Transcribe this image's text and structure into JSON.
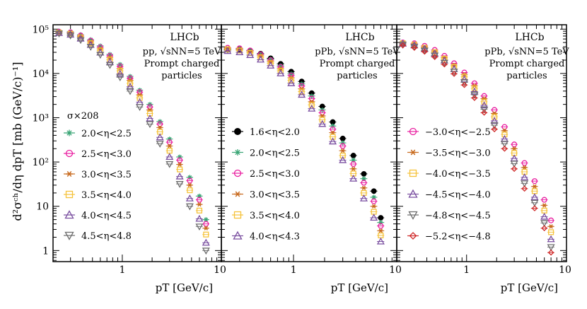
{
  "figure": {
    "ylabel": "d²σᶜʰ/dη dpT [mb (GeV/c)⁻¹]",
    "xlabel": "pT [GeV/c]",
    "y_tick_labels": [
      "1",
      "10",
      "10²",
      "10³",
      "10⁴",
      "10⁵"
    ],
    "x_tick_labels": [
      "1",
      "10"
    ]
  },
  "chart_data": [
    {
      "type": "scatter",
      "title": "LHCb",
      "subtitle_lines": [
        "pp, √sNN=5 TeV",
        "Prompt charged",
        "particles"
      ],
      "note": "σ×208",
      "xlabel": "pT [GeV/c]",
      "ylabel": "d²σch/dη dpT [mb (GeV/c)⁻¹]",
      "xscale": "log",
      "yscale": "log",
      "xlim": [
        0.2,
        10
      ],
      "ylim": [
        0.5,
        150000
      ],
      "x": [
        0.23,
        0.3,
        0.38,
        0.48,
        0.6,
        0.75,
        0.95,
        1.2,
        1.5,
        1.9,
        2.4,
        3.0,
        3.8,
        4.8,
        6.0,
        7.0
      ],
      "series": [
        {
          "name": "2.0<η<2.5",
          "color": "#3aa575",
          "marker": "asterisk",
          "values": [
            90000,
            88000,
            75000,
            58000,
            42000,
            27000,
            16000,
            8600,
            4200,
            2000,
            820,
            330,
            130,
            45,
            17,
            5.0
          ]
        },
        {
          "name": "2.5<η<3.0",
          "color": "#e91ea0",
          "marker": "circle",
          "values": [
            88000,
            85000,
            72000,
            55000,
            39000,
            25000,
            14500,
            7800,
            3800,
            1750,
            720,
            280,
            110,
            38,
            14,
            4.0
          ]
        },
        {
          "name": "3.0<η<3.5",
          "color": "#c86a1e",
          "marker": "star",
          "values": [
            86000,
            82000,
            69000,
            52000,
            36000,
            23000,
            13000,
            7000,
            3300,
            1500,
            600,
            230,
            88,
            30,
            11,
            3.2
          ]
        },
        {
          "name": "3.5<η<4.0",
          "color": "#f5c23a",
          "marker": "square",
          "values": [
            84000,
            79000,
            65000,
            48000,
            33000,
            20500,
            11500,
            6000,
            2800,
            1250,
            480,
            180,
            68,
            23,
            8.0,
            2.3
          ]
        },
        {
          "name": "4.0<η<4.5",
          "color": "#7a4fa0",
          "marker": "triangle-up",
          "values": [
            82000,
            75000,
            61000,
            44000,
            29500,
            18000,
            9800,
            5000,
            2250,
            960,
            360,
            130,
            47,
            15,
            5.2,
            1.5
          ]
        },
        {
          "name": "4.5<η<4.8",
          "color": "#6e6e6e",
          "marker": "triangle-down",
          "values": [
            80000,
            72000,
            57000,
            40000,
            26500,
            15500,
            8200,
            4000,
            1750,
            720,
            260,
            90,
            32,
            10,
            3.5,
            1.0
          ]
        }
      ]
    },
    {
      "type": "scatter",
      "title": "LHCb",
      "subtitle_lines": [
        "pPb, √sNN=5 TeV",
        "Prompt charged",
        "particles"
      ],
      "note": "",
      "xlabel": "pT [GeV/c]",
      "ylabel": "",
      "xscale": "log",
      "yscale": "log",
      "xlim": [
        0.2,
        10
      ],
      "ylim": [
        0.5,
        150000
      ],
      "x": [
        0.23,
        0.3,
        0.38,
        0.48,
        0.6,
        0.75,
        0.95,
        1.2,
        1.5,
        1.9,
        2.4,
        3.0,
        3.8,
        4.8,
        6.0,
        7.0
      ],
      "series": [
        {
          "name": "1.6<η<2.0",
          "color": "#000000",
          "marker": "filled-circle",
          "values": [
            34000,
            35000,
            33000,
            28000,
            22000,
            16500,
            11000,
            6600,
            3600,
            1800,
            800,
            340,
            140,
            54,
            22,
            5.5
          ]
        },
        {
          "name": "2.0<η<2.5",
          "color": "#3aa575",
          "marker": "asterisk",
          "values": [
            36000,
            36000,
            33000,
            27000,
            21000,
            15000,
            9800,
            5800,
            3100,
            1500,
            650,
            270,
            110,
            42,
            16,
            4.3
          ]
        },
        {
          "name": "2.5<η<3.0",
          "color": "#e91ea0",
          "marker": "circle",
          "values": [
            38000,
            37000,
            33000,
            27000,
            20000,
            14000,
            9000,
            5200,
            2700,
            1300,
            550,
            230,
            90,
            34,
            13,
            3.6
          ]
        },
        {
          "name": "3.0<η<3.5",
          "color": "#c86a1e",
          "marker": "star",
          "values": [
            37000,
            35000,
            31000,
            25000,
            18500,
            12800,
            8000,
            4500,
            2300,
            1100,
            460,
            180,
            70,
            26,
            10,
            2.8
          ]
        },
        {
          "name": "3.5<η<4.0",
          "color": "#f5c23a",
          "marker": "square",
          "values": [
            35000,
            33000,
            29000,
            23000,
            17000,
            11500,
            7000,
            3900,
            1950,
            900,
            370,
            140,
            55,
            20,
            7.5,
            2.2
          ]
        },
        {
          "name": "4.0<η<4.3",
          "color": "#7a4fa0",
          "marker": "triangle-up",
          "values": [
            32000,
            30000,
            26000,
            20500,
            15000,
            10000,
            6000,
            3300,
            1600,
            720,
            290,
            110,
            42,
            15,
            5.5,
            1.6
          ]
        }
      ]
    },
    {
      "type": "scatter",
      "title": "LHCb",
      "subtitle_lines": [
        "pPb, √sNN=5 TeV",
        "Prompt charged",
        "particles"
      ],
      "note": "",
      "xlabel": "pT [GeV/c]",
      "ylabel": "",
      "xscale": "log",
      "yscale": "log",
      "xlim": [
        0.2,
        10
      ],
      "ylim": [
        0.5,
        150000
      ],
      "x": [
        0.23,
        0.3,
        0.38,
        0.48,
        0.6,
        0.75,
        0.95,
        1.2,
        1.5,
        1.9,
        2.4,
        3.0,
        3.8,
        4.8,
        6.0,
        7.0
      ],
      "series": [
        {
          "name": "−3.0<η<−2.5",
          "color": "#e91ea0",
          "marker": "circle",
          "values": [
            50000,
            48000,
            42000,
            34000,
            25000,
            17000,
            10500,
            6000,
            3100,
            1500,
            620,
            250,
            95,
            37,
            14,
            4.8
          ]
        },
        {
          "name": "−3.5<η<−3.0",
          "color": "#c86a1e",
          "marker": "star",
          "values": [
            49000,
            46000,
            40000,
            32000,
            23000,
            15500,
            9500,
            5300,
            2700,
            1250,
            510,
            200,
            75,
            28,
            10.5,
            3.5
          ]
        },
        {
          "name": "−4.0<η<−3.5",
          "color": "#f5c23a",
          "marker": "square",
          "values": [
            48000,
            45000,
            38000,
            30000,
            21500,
            14000,
            8400,
            4600,
            2300,
            1050,
            420,
            160,
            60,
            22,
            8.0,
            2.6
          ]
        },
        {
          "name": "−4.5<η<−4.0",
          "color": "#7a4fa0",
          "marker": "triangle-up",
          "values": [
            47000,
            43000,
            36000,
            28000,
            19500,
            12500,
            7300,
            3900,
            1900,
            850,
            330,
            120,
            45,
            16,
            5.8,
            1.8
          ]
        },
        {
          "name": "−4.8<η<−4.5",
          "color": "#6e6e6e",
          "marker": "triangle-down",
          "values": [
            45000,
            40000,
            33000,
            25500,
            17500,
            11000,
            6300,
            3300,
            1550,
            680,
            260,
            92,
            33,
            12,
            4.2,
            1.2
          ]
        },
        {
          "name": "−5.2<η<−4.8",
          "color": "#d02a2a",
          "marker": "diamond",
          "values": [
            43000,
            38000,
            31000,
            23500,
            16000,
            9800,
            5500,
            2800,
            1300,
            550,
            200,
            70,
            25,
            9.0,
            3.2,
            0.9
          ]
        }
      ]
    }
  ]
}
